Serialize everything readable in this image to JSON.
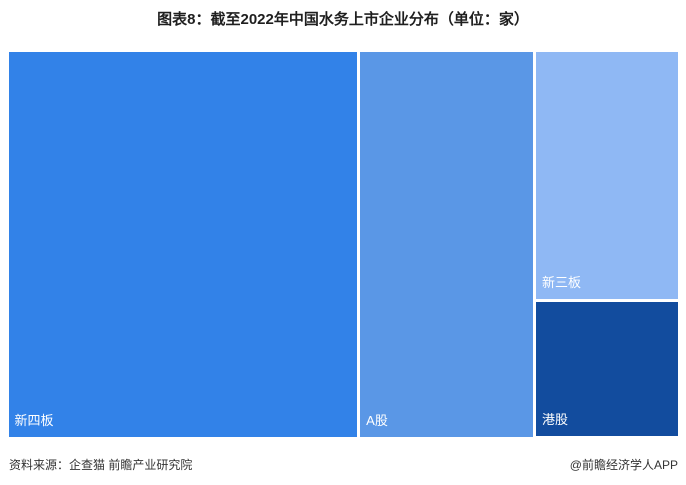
{
  "chart_data": {
    "type": "treemap",
    "title": "图表8：截至2022年中国水务上市企业分布（单位：家）",
    "series": [
      {
        "name": "新四板",
        "value": 116,
        "color": "#3282e8"
      },
      {
        "name": "A股",
        "value": 58,
        "color": "#5a97e6"
      },
      {
        "name": "新三板",
        "value": 31,
        "color": "#8fb8f4"
      },
      {
        "name": "港股",
        "value": 17,
        "color": "#124c9e"
      }
    ]
  },
  "footer": {
    "source": "资料来源：企查猫 前瞻产业研究院",
    "brand": "@前瞻经济学人APP"
  }
}
